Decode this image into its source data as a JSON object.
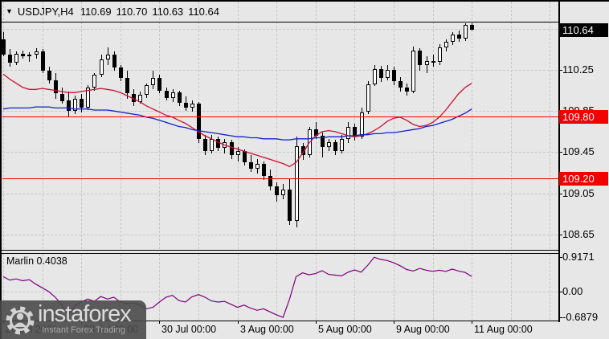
{
  "header": {
    "dropdown_icon": "▼",
    "symbol_label": "USDJPY,H4",
    "open": "110.69",
    "high": "110.70",
    "low": "110.63",
    "close": "110.64"
  },
  "watermark": {
    "brand": "instaforex",
    "tagline": "Instant Forex Trading"
  },
  "indicator_header": {
    "label": "Marlin 0.4038"
  },
  "colors": {
    "background": "#e7e7e7",
    "grid": "#c7c7c7",
    "frame": "#000000",
    "bull_body": "#ffffff",
    "bear_body": "#000000",
    "ma_red": "#cc1133",
    "ma_blue": "#1122cc",
    "marlin_purple": "#7d007d",
    "level_line_red": "#f20000",
    "level_badge_bg": "#f20000",
    "current_badge_bg": "#000000",
    "badge_text": "#ffffff",
    "axis_text": "#000000"
  },
  "chart_data": {
    "type": "candlestick",
    "symbol": "USDJPY",
    "timeframe": "H4",
    "title": "USDJPY,H4 110.69 110.70 110.63 110.64",
    "current_ohlc": {
      "open": 110.69,
      "high": 110.7,
      "low": 110.63,
      "close": 110.64
    },
    "y_axis": {
      "grid_on": true,
      "range": [
        108.5,
        110.71
      ],
      "ticks": [
        {
          "text": "110.65",
          "value": 110.65
        },
        {
          "text": "110.25",
          "value": 110.25
        },
        {
          "text": "109.85",
          "value": 109.85
        },
        {
          "text": "109.45",
          "value": 109.45
        },
        {
          "text": "109.05",
          "value": 109.05
        },
        {
          "text": "108.65",
          "value": 108.65
        }
      ]
    },
    "current_price": {
      "text": "110.64",
      "value": 110.64
    },
    "price_levels": [
      {
        "text": "109.80",
        "value": 109.8
      },
      {
        "text": "109.20",
        "value": 109.2
      }
    ],
    "x_axis": {
      "grid_every_candles": 6,
      "labels": [
        {
          "text": "26 Jul 2021",
          "candle_index": 0
        },
        {
          "text": "28 Jul 00:00",
          "candle_index": 12
        },
        {
          "text": "30 Jul 00:00",
          "candle_index": 24
        },
        {
          "text": "3 Aug 00:00",
          "candle_index": 36
        },
        {
          "text": "5 Aug 00:00",
          "candle_index": 48
        },
        {
          "text": "9 Aug 00:00",
          "candle_index": 60
        },
        {
          "text": "11 Aug 00:00",
          "candle_index": 72
        }
      ]
    },
    "candles": [
      [
        110.55,
        110.62,
        110.38,
        110.4
      ],
      [
        110.4,
        110.45,
        110.28,
        110.32
      ],
      [
        110.32,
        110.43,
        110.3,
        110.41
      ],
      [
        110.41,
        110.44,
        110.36,
        110.38
      ],
      [
        110.38,
        110.42,
        110.33,
        110.4
      ],
      [
        110.4,
        110.46,
        110.36,
        110.43
      ],
      [
        110.43,
        110.45,
        110.22,
        110.24
      ],
      [
        110.24,
        110.28,
        110.12,
        110.15
      ],
      [
        110.15,
        110.22,
        109.97,
        110.02
      ],
      [
        110.02,
        110.08,
        109.92,
        109.95
      ],
      [
        109.95,
        110.04,
        109.8,
        109.85
      ],
      [
        109.85,
        110.0,
        109.82,
        109.97
      ],
      [
        109.97,
        110.02,
        109.84,
        109.88
      ],
      [
        109.88,
        110.1,
        109.86,
        110.08
      ],
      [
        110.08,
        110.22,
        110.05,
        110.2
      ],
      [
        110.2,
        110.4,
        110.18,
        110.35
      ],
      [
        110.35,
        110.47,
        110.3,
        110.4
      ],
      [
        110.4,
        110.43,
        110.24,
        110.27
      ],
      [
        110.27,
        110.3,
        110.14,
        110.17
      ],
      [
        110.17,
        110.24,
        109.97,
        110.02
      ],
      [
        110.02,
        110.06,
        109.9,
        109.94
      ],
      [
        109.94,
        110.04,
        109.92,
        110.01
      ],
      [
        110.01,
        110.12,
        109.98,
        110.1
      ],
      [
        110.1,
        110.24,
        110.06,
        110.17
      ],
      [
        110.17,
        110.2,
        110.02,
        110.05
      ],
      [
        110.05,
        110.08,
        109.95,
        109.98
      ],
      [
        109.98,
        110.06,
        109.94,
        110.03
      ],
      [
        110.03,
        110.05,
        109.9,
        109.93
      ],
      [
        109.93,
        109.99,
        109.85,
        109.88
      ],
      [
        109.88,
        109.95,
        109.84,
        109.92
      ],
      [
        109.92,
        109.94,
        109.54,
        109.58
      ],
      [
        109.58,
        109.62,
        109.42,
        109.46
      ],
      [
        109.46,
        109.62,
        109.44,
        109.58
      ],
      [
        109.58,
        109.6,
        109.46,
        109.49
      ],
      [
        109.49,
        109.58,
        109.44,
        109.55
      ],
      [
        109.55,
        109.57,
        109.38,
        109.42
      ],
      [
        109.42,
        109.5,
        109.36,
        109.46
      ],
      [
        109.46,
        109.48,
        109.32,
        109.35
      ],
      [
        109.35,
        109.42,
        109.26,
        109.29
      ],
      [
        109.29,
        109.38,
        109.24,
        109.34
      ],
      [
        109.34,
        109.36,
        109.18,
        109.22
      ],
      [
        109.22,
        109.28,
        109.08,
        109.12
      ],
      [
        109.12,
        109.16,
        108.97,
        109.03
      ],
      [
        109.03,
        109.14,
        108.99,
        109.09
      ],
      [
        109.09,
        109.2,
        108.74,
        108.78
      ],
      [
        108.78,
        109.6,
        108.72,
        109.51
      ],
      [
        109.51,
        109.54,
        109.38,
        109.42
      ],
      [
        109.42,
        109.7,
        109.4,
        109.67
      ],
      [
        109.67,
        109.74,
        109.58,
        109.61
      ],
      [
        109.61,
        109.64,
        109.4,
        109.5
      ],
      [
        109.5,
        109.58,
        109.46,
        109.55
      ],
      [
        109.55,
        109.57,
        109.42,
        109.46
      ],
      [
        109.46,
        109.62,
        109.44,
        109.58
      ],
      [
        109.58,
        109.74,
        109.54,
        109.7
      ],
      [
        109.7,
        109.73,
        109.56,
        109.6
      ],
      [
        109.6,
        109.88,
        109.58,
        109.84
      ],
      [
        109.84,
        110.14,
        109.82,
        110.11
      ],
      [
        110.11,
        110.3,
        110.09,
        110.26
      ],
      [
        110.26,
        110.29,
        110.13,
        110.17
      ],
      [
        110.17,
        110.3,
        110.15,
        110.25
      ],
      [
        110.25,
        110.28,
        110.1,
        110.14
      ],
      [
        110.14,
        110.18,
        110.04,
        110.08
      ],
      [
        110.08,
        110.12,
        110.0,
        110.04
      ],
      [
        110.04,
        110.48,
        110.02,
        110.44
      ],
      [
        110.44,
        110.46,
        110.24,
        110.3
      ],
      [
        110.3,
        110.38,
        110.22,
        110.34
      ],
      [
        110.34,
        110.4,
        110.28,
        110.33
      ],
      [
        110.33,
        110.5,
        110.3,
        110.47
      ],
      [
        110.47,
        110.55,
        110.43,
        110.52
      ],
      [
        110.52,
        110.62,
        110.49,
        110.59
      ],
      [
        110.59,
        110.63,
        110.52,
        110.55
      ],
      [
        110.55,
        110.7,
        110.53,
        110.69
      ],
      [
        110.69,
        110.7,
        110.63,
        110.64
      ]
    ],
    "overlays": {
      "ma_red": [
        110.21,
        110.16,
        110.12,
        110.08,
        110.06,
        110.06,
        110.07,
        110.06,
        110.05,
        110.04,
        110.03,
        110.03,
        110.04,
        110.05,
        110.06,
        110.07,
        110.06,
        110.05,
        110.03,
        110.0,
        109.97,
        109.94,
        109.9,
        109.87,
        109.84,
        109.81,
        109.79,
        109.76,
        109.73,
        109.69,
        109.65,
        109.61,
        109.58,
        109.55,
        109.52,
        109.5,
        109.48,
        109.46,
        109.44,
        109.42,
        109.4,
        109.38,
        109.36,
        109.34,
        109.31,
        109.35,
        109.44,
        109.54,
        109.61,
        109.65,
        109.66,
        109.65,
        109.63,
        109.61,
        109.6,
        109.61,
        109.63,
        109.66,
        109.7,
        109.75,
        109.78,
        109.79,
        109.76,
        109.72,
        109.7,
        109.71,
        109.74,
        109.79,
        109.86,
        109.94,
        110.02,
        110.08,
        110.12
      ],
      "ma_blue": [
        109.87,
        109.88,
        109.88,
        109.88,
        109.88,
        109.89,
        109.89,
        109.89,
        109.88,
        109.88,
        109.88,
        109.87,
        109.87,
        109.87,
        109.86,
        109.86,
        109.86,
        109.85,
        109.84,
        109.83,
        109.82,
        109.81,
        109.79,
        109.78,
        109.76,
        109.74,
        109.72,
        109.7,
        109.69,
        109.67,
        109.66,
        109.65,
        109.64,
        109.63,
        109.62,
        109.61,
        109.6,
        109.6,
        109.59,
        109.59,
        109.58,
        109.58,
        109.58,
        109.57,
        109.57,
        109.58,
        109.58,
        109.58,
        109.59,
        109.59,
        109.6,
        109.6,
        109.6,
        109.61,
        109.61,
        109.62,
        109.62,
        109.63,
        109.63,
        109.64,
        109.64,
        109.65,
        109.66,
        109.67,
        109.68,
        109.7,
        109.71,
        109.73,
        109.75,
        109.77,
        109.8,
        109.83,
        109.87
      ]
    },
    "indicator_panel": {
      "name": "Marlin",
      "current_value": 0.4038,
      "grid_on": true,
      "range": [
        -0.77,
        1.03
      ],
      "y_ticks": [
        {
          "text": "0.9171",
          "value": 0.9171
        },
        {
          "text": "0.00",
          "value": 0.0
        },
        {
          "text": "-0.6879",
          "value": -0.6879
        }
      ],
      "zero_line_value": 0.0,
      "values": [
        0.4,
        0.31,
        0.34,
        0.29,
        0.32,
        0.2,
        0.1,
        0.0,
        -0.15,
        -0.35,
        -0.62,
        -0.38,
        -0.27,
        -0.2,
        -0.26,
        -0.13,
        -0.2,
        -0.15,
        -0.28,
        -0.32,
        -0.3,
        -0.36,
        -0.46,
        -0.42,
        -0.28,
        -0.15,
        -0.1,
        -0.24,
        -0.28,
        -0.14,
        -0.08,
        -0.15,
        -0.25,
        -0.28,
        -0.26,
        -0.34,
        -0.42,
        -0.36,
        -0.44,
        -0.5,
        -0.46,
        -0.54,
        -0.62,
        -0.688,
        -0.2,
        0.4,
        0.5,
        0.45,
        0.48,
        0.56,
        0.46,
        0.44,
        0.42,
        0.52,
        0.58,
        0.52,
        0.7,
        0.917,
        0.86,
        0.83,
        0.77,
        0.69,
        0.59,
        0.55,
        0.62,
        0.57,
        0.54,
        0.57,
        0.54,
        0.6,
        0.55,
        0.51,
        0.404
      ]
    }
  }
}
